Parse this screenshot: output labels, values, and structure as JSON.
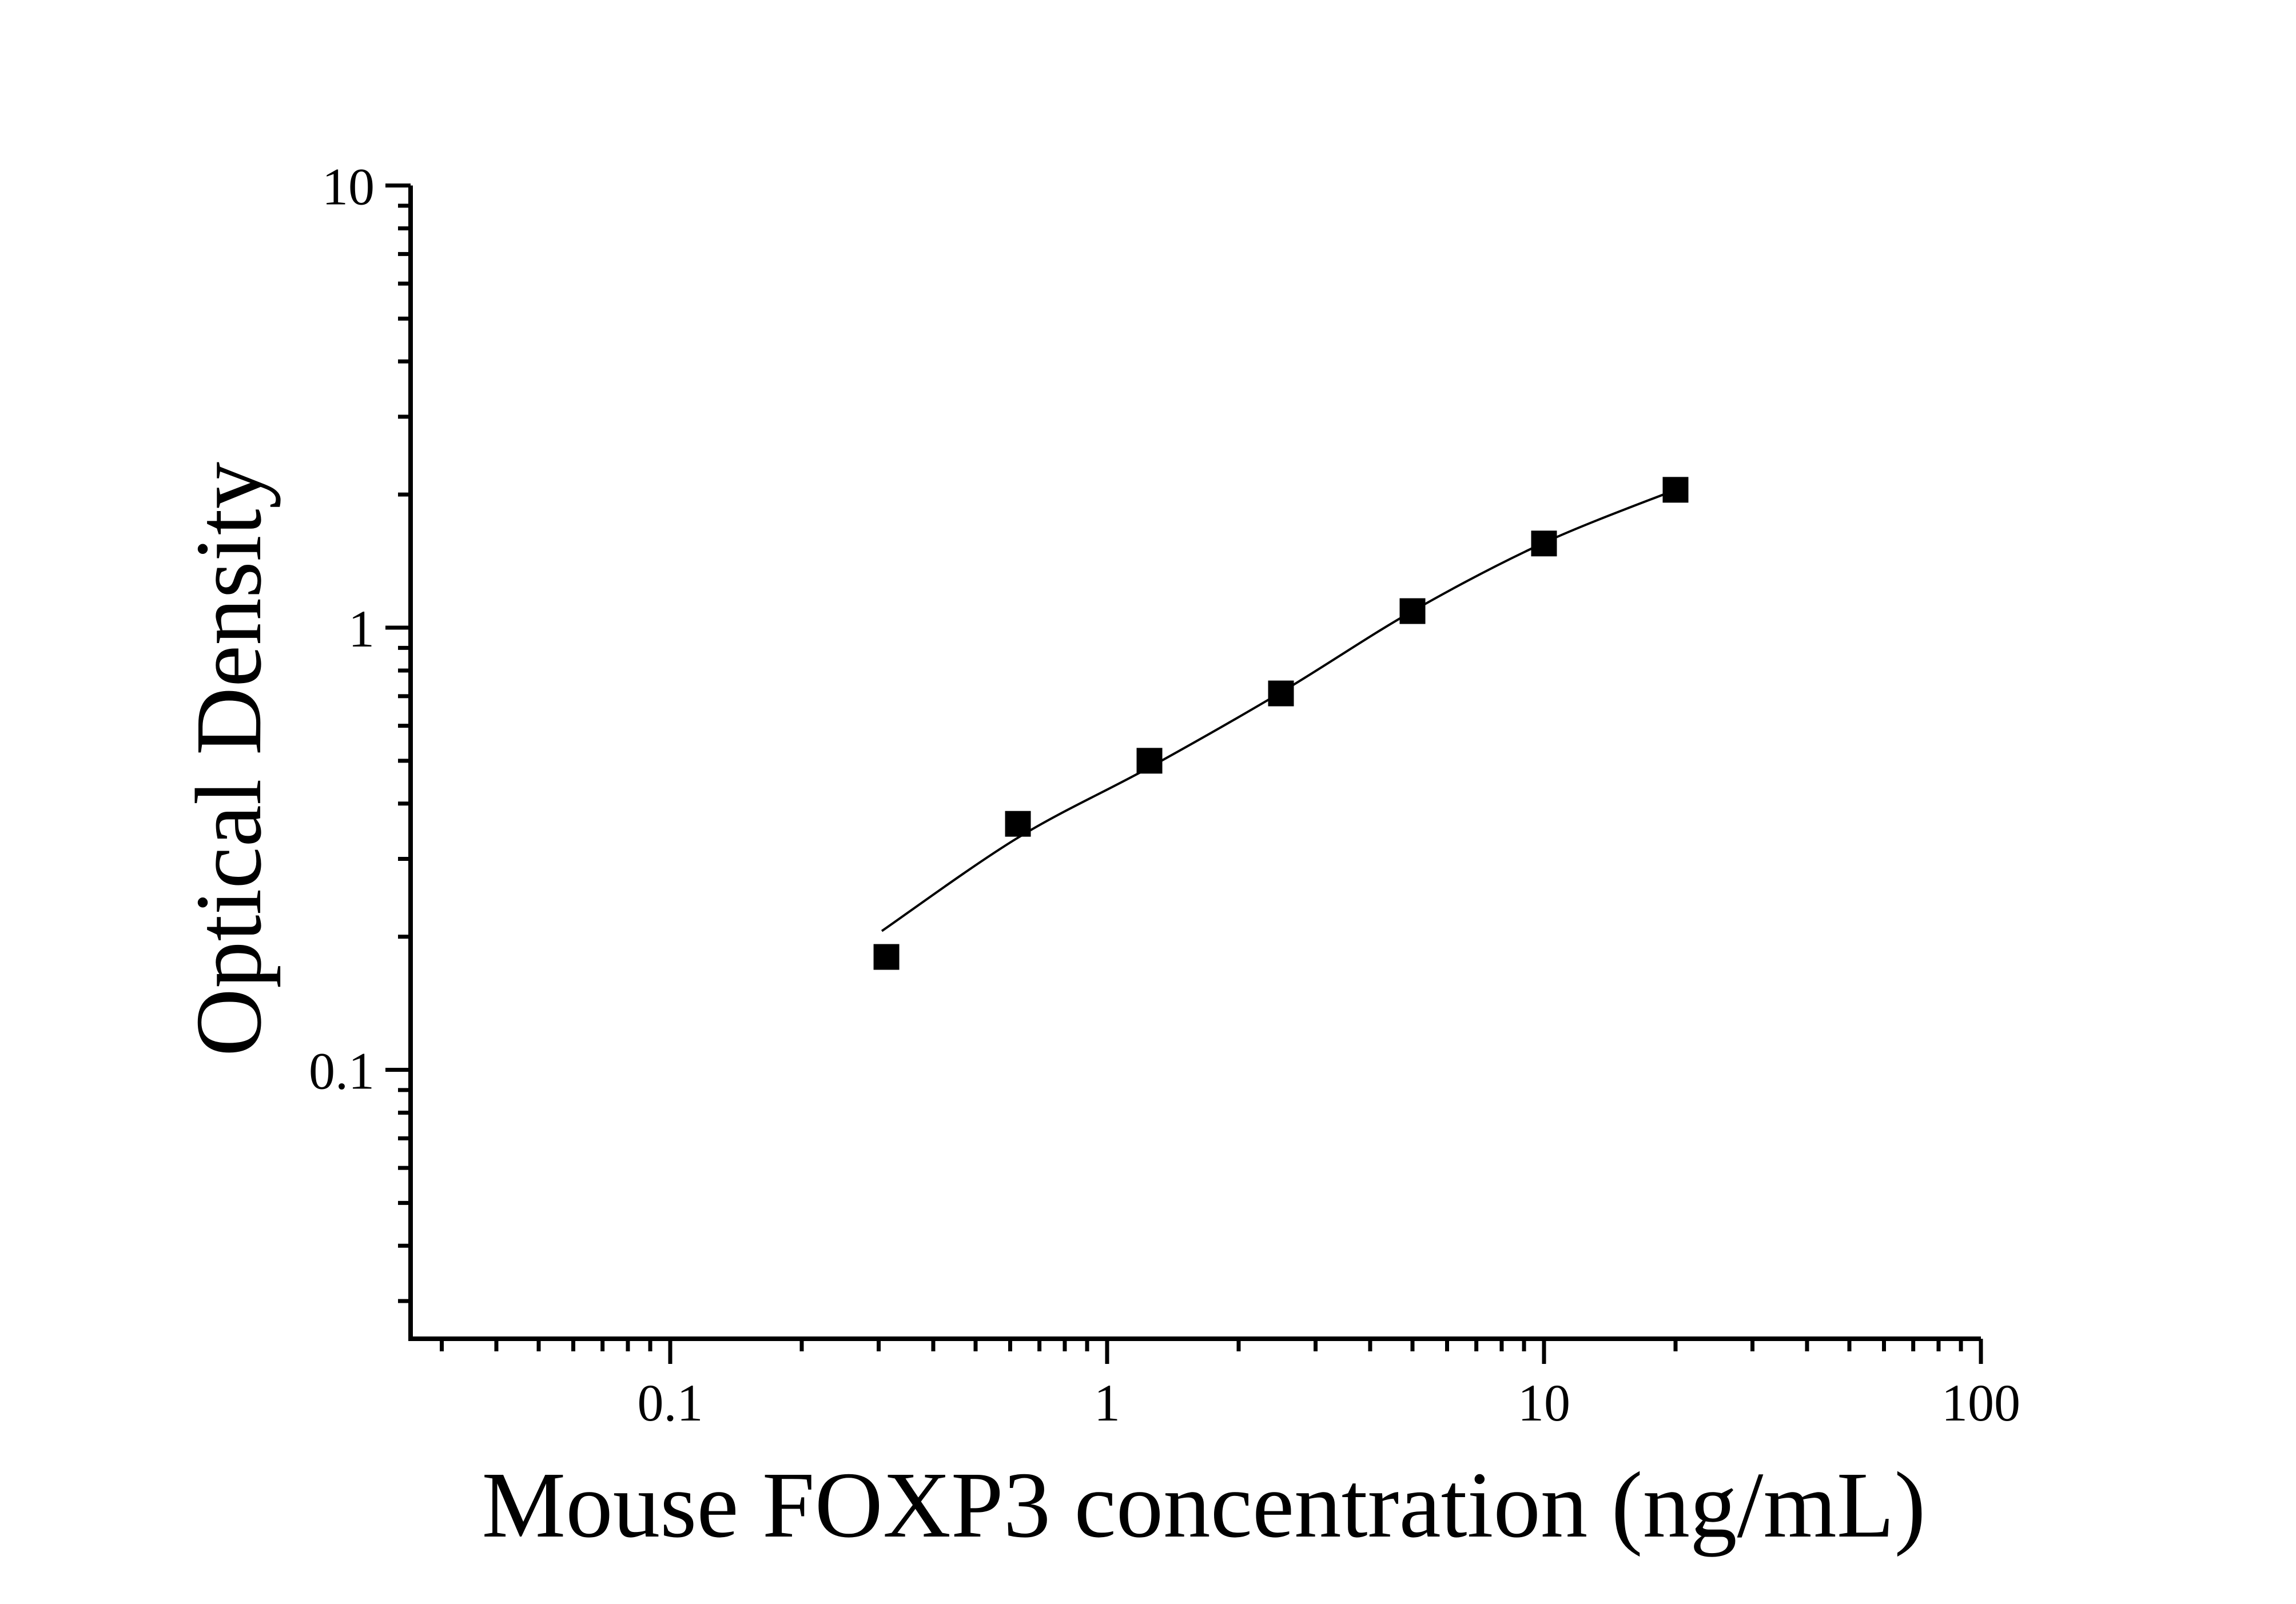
{
  "chart_data": {
    "type": "scatter",
    "title": "",
    "xlabel": "Mouse FOXP3 concentration (ng/mL)",
    "ylabel": "Optical Density",
    "x_scale": "log",
    "y_scale": "log",
    "xlim": [
      0.0255,
      100
    ],
    "ylim": [
      0.0247,
      10
    ],
    "grid": false,
    "legend": "none",
    "background_color": "#ffffff",
    "foreground_color": "#000000",
    "x_ticks": [
      {
        "v": 0.1,
        "label": "0.1"
      },
      {
        "v": 1,
        "label": "1"
      },
      {
        "v": 10,
        "label": "10"
      },
      {
        "v": 100,
        "label": "100"
      }
    ],
    "y_ticks": [
      {
        "v": 10,
        "label": "10"
      },
      {
        "v": 1,
        "label": "1"
      },
      {
        "v": 0.1,
        "label": "0.1"
      }
    ],
    "series": [
      {
        "name": "standard-points",
        "marker": "filled-square",
        "marker_color": "#000000",
        "x": [
          0.3125,
          0.625,
          1.25,
          2.5,
          5,
          10,
          20
        ],
        "y": [
          0.18,
          0.36,
          0.5,
          0.71,
          1.09,
          1.55,
          2.05
        ]
      }
    ],
    "fit_curve": {
      "name": "fitted-standard-curve",
      "line_color": "#000000",
      "x": [
        0.305,
        0.625,
        1.25,
        2.5,
        5,
        10,
        20
      ],
      "y": [
        0.206,
        0.335,
        0.483,
        0.714,
        1.09,
        1.556,
        2.05
      ]
    }
  }
}
